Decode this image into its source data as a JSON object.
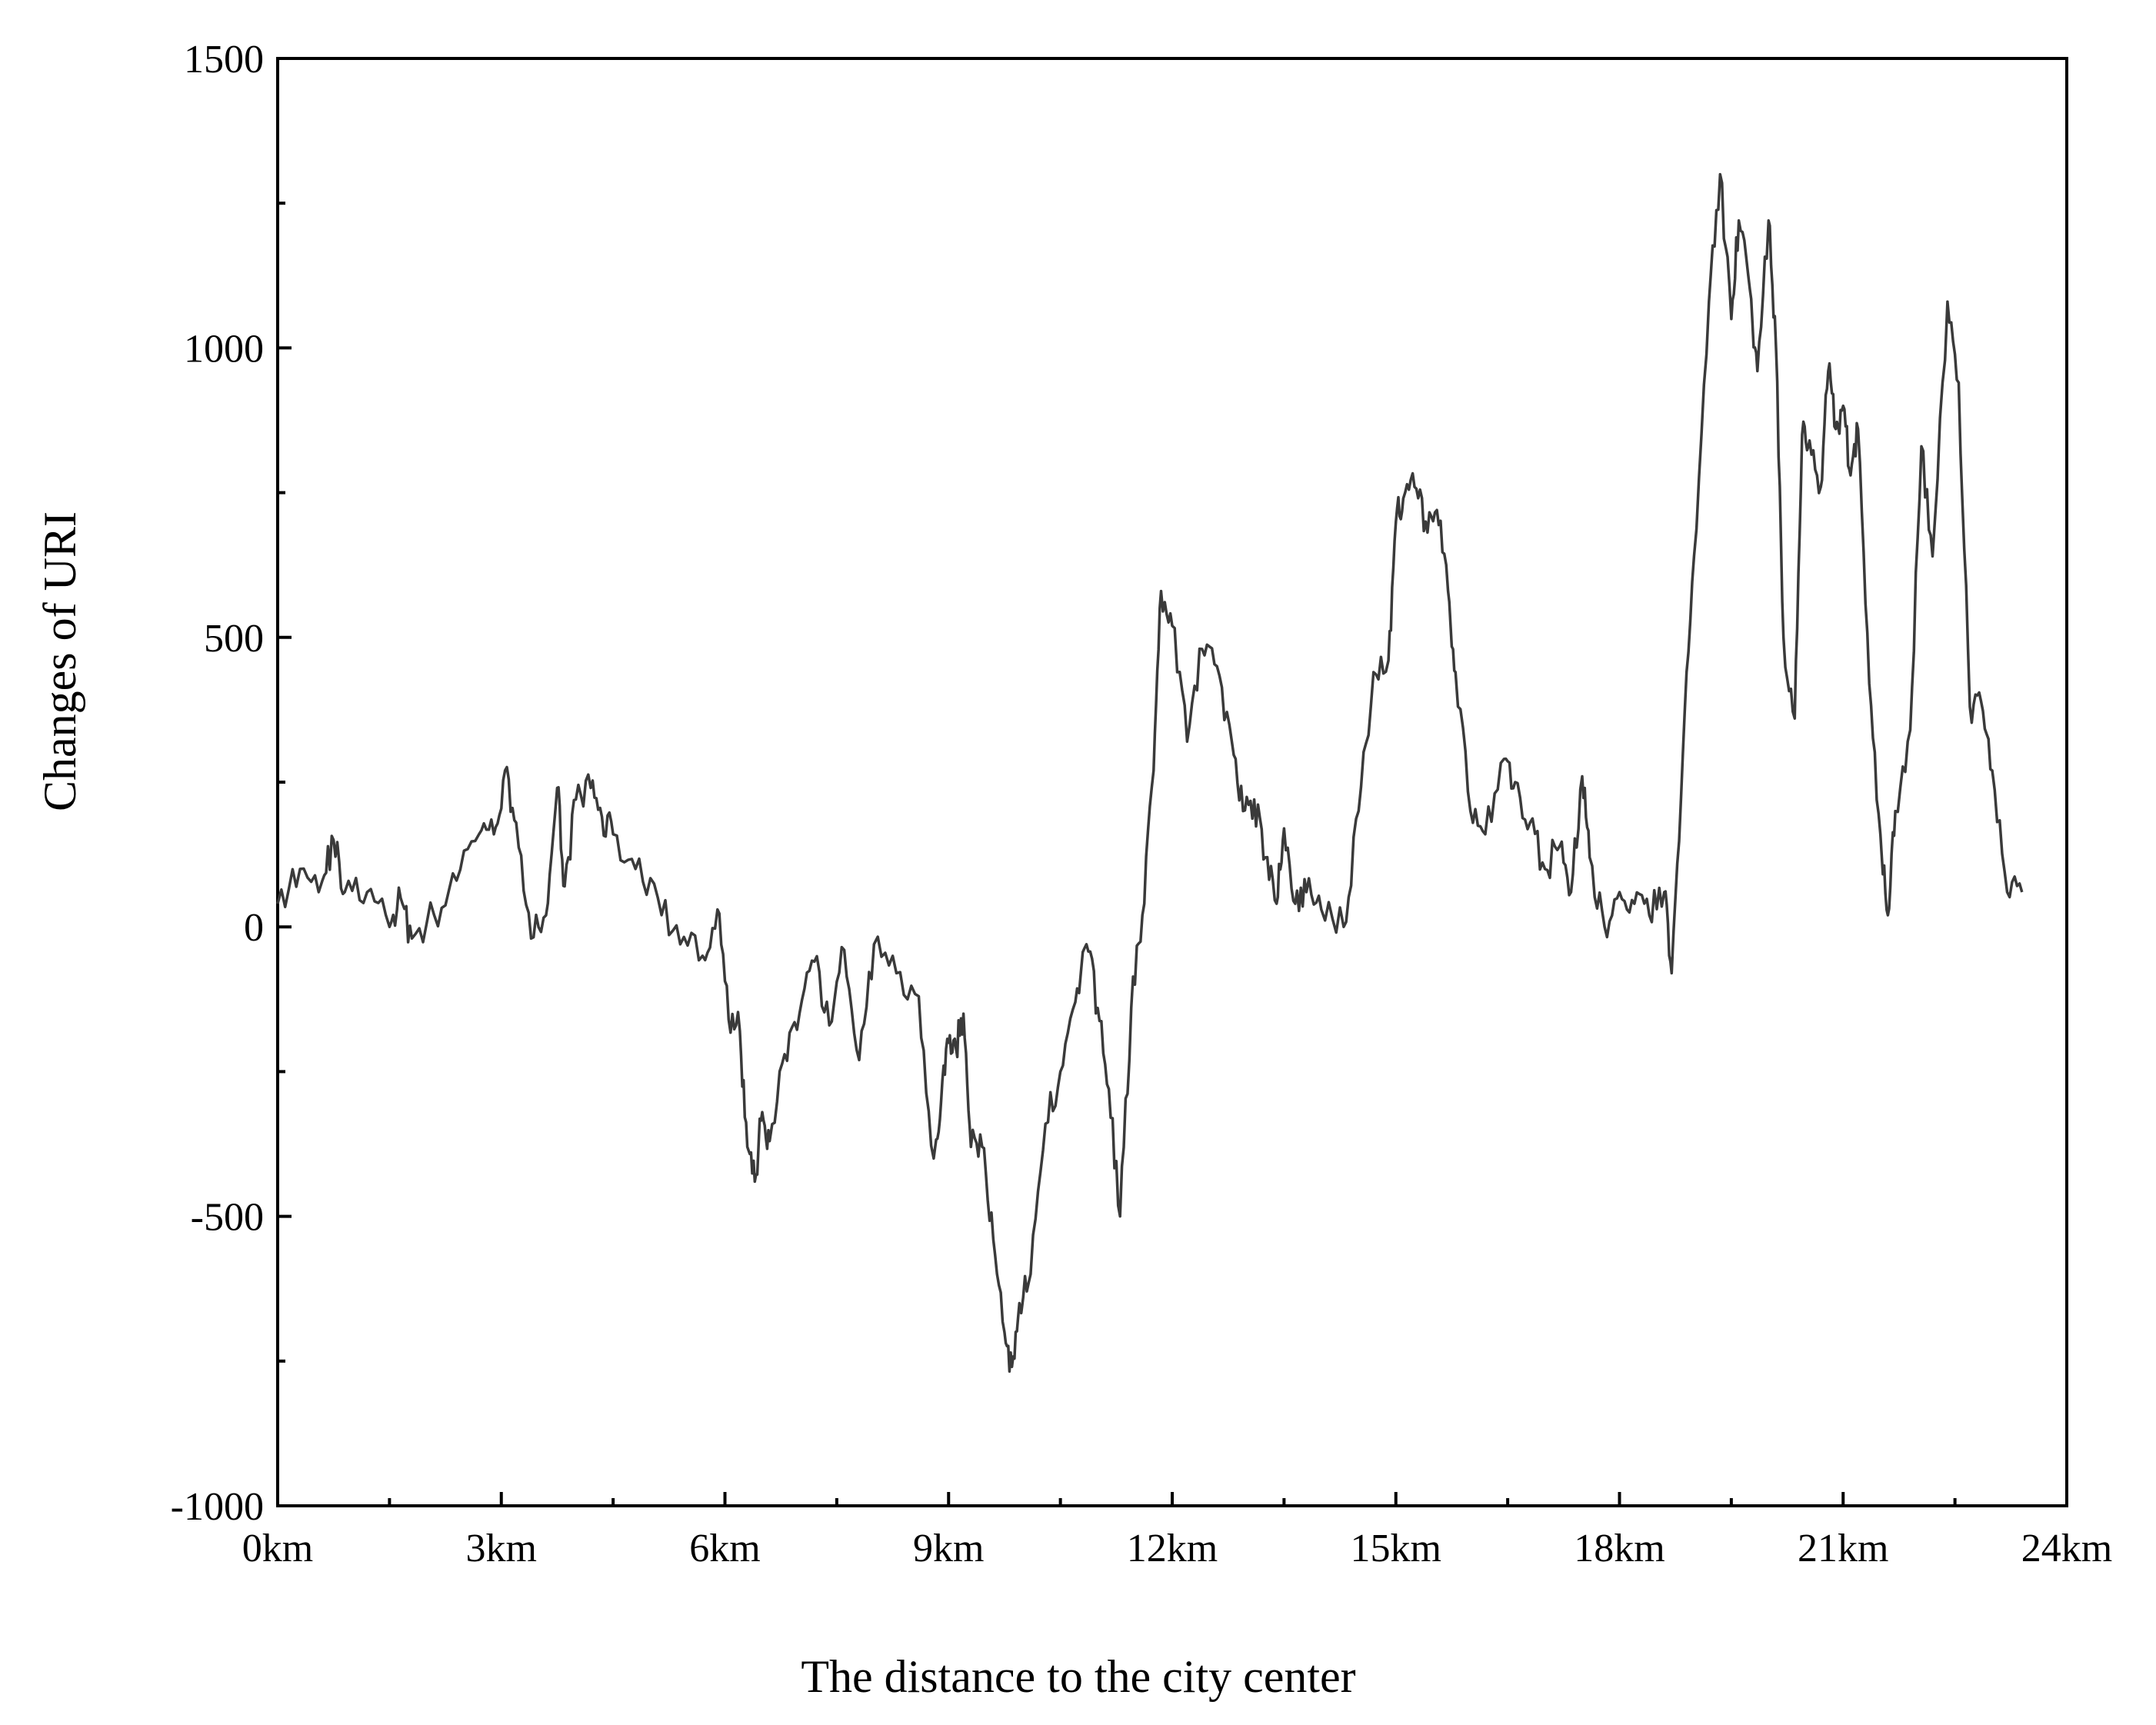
{
  "chart_data": {
    "type": "line",
    "title": "",
    "xlabel": "The distance to the city center",
    "ylabel": "Changes of  URI",
    "xlim": [
      0,
      24
    ],
    "ylim": [
      -1000,
      1500
    ],
    "grid": false,
    "legend": "none",
    "line_color": "#3a3a3a",
    "x_ticks": [
      {
        "value": 0,
        "label": "0km"
      },
      {
        "value": 3,
        "label": "3km"
      },
      {
        "value": 6,
        "label": "6km"
      },
      {
        "value": 9,
        "label": "9km"
      },
      {
        "value": 12,
        "label": "12km"
      },
      {
        "value": 15,
        "label": "15km"
      },
      {
        "value": 18,
        "label": "18km"
      },
      {
        "value": 21,
        "label": "21km"
      },
      {
        "value": 24,
        "label": "24km"
      }
    ],
    "y_ticks": [
      {
        "value": 1500,
        "label": "1500"
      },
      {
        "value": 1000,
        "label": "1000"
      },
      {
        "value": 500,
        "label": "500"
      },
      {
        "value": 0,
        "label": "0"
      },
      {
        "value": -500,
        "label": "-500"
      },
      {
        "value": -1000,
        "label": "-1000"
      }
    ],
    "series": [
      {
        "x": [
          0,
          0.3,
          0.6,
          0.75,
          0.9,
          1.2,
          1.5,
          1.65,
          1.8,
          2.1,
          2.4,
          2.7,
          2.9,
          3.05,
          3.2,
          3.4,
          3.6,
          3.75,
          3.85,
          4.0,
          4.2,
          4.35,
          4.5,
          4.8,
          5.1,
          5.4,
          5.7,
          5.9,
          6.05,
          6.2,
          6.3,
          6.4,
          6.5,
          6.6,
          6.8,
          7.0,
          7.2,
          7.4,
          7.6,
          7.8,
          8.0,
          8.3,
          8.6,
          8.8,
          8.9,
          9.0,
          9.1,
          9.2,
          9.3,
          9.45,
          9.6,
          9.75,
          9.85,
          9.95,
          10.1,
          10.3,
          10.5,
          10.7,
          10.85,
          11.0,
          11.15,
          11.3,
          11.45,
          11.6,
          11.75,
          11.85,
          12.0,
          12.2,
          12.4,
          12.6,
          12.8,
          12.95,
          13.1,
          13.25,
          13.4,
          13.5,
          13.65,
          13.8,
          14.0,
          14.3,
          14.5,
          14.7,
          14.9,
          15.0,
          15.1,
          15.25,
          15.4,
          15.55,
          15.7,
          15.8,
          16.0,
          16.2,
          16.45,
          16.6,
          16.8,
          17.0,
          17.2,
          17.35,
          17.5,
          17.6,
          17.8,
          18.0,
          18.2,
          18.4,
          18.6,
          18.7,
          18.85,
          19.0,
          19.2,
          19.35,
          19.5,
          19.6,
          19.75,
          19.85,
          20.0,
          20.1,
          20.2,
          20.35,
          20.45,
          20.55,
          20.7,
          20.8,
          20.9,
          21.0,
          21.1,
          21.2,
          21.35,
          21.5,
          21.6,
          21.7,
          21.9,
          22.05,
          22.2,
          22.4,
          22.55,
          22.7,
          22.85,
          23.0,
          23.2,
          23.4
        ],
        "values": [
          40,
          100,
          80,
          150,
          60,
          60,
          0,
          50,
          -20,
          20,
          80,
          160,
          160,
          270,
          180,
          -20,
          20,
          240,
          70,
          220,
          240,
          190,
          160,
          100,
          50,
          -30,
          -50,
          30,
          -160,
          -180,
          -380,
          -440,
          -320,
          -370,
          -220,
          -150,
          -60,
          -170,
          -40,
          -230,
          -30,
          -80,
          -120,
          -400,
          -300,
          -200,
          -210,
          -150,
          -380,
          -380,
          -540,
          -700,
          -760,
          -650,
          -600,
          -340,
          -250,
          -130,
          -30,
          -140,
          -280,
          -500,
          -140,
          20,
          270,
          580,
          520,
          320,
          480,
          450,
          320,
          200,
          220,
          120,
          40,
          170,
          40,
          60,
          30,
          0,
          200,
          440,
          460,
          700,
          740,
          760,
          700,
          720,
          580,
          440,
          200,
          160,
          290,
          250,
          180,
          100,
          140,
          60,
          260,
          120,
          0,
          60,
          40,
          20,
          60,
          -80,
          300,
          640,
          1080,
          1300,
          1050,
          1220,
          1100,
          960,
          1220,
          1000,
          500,
          360,
          850,
          840,
          760,
          960,
          860,
          900,
          780,
          860,
          420,
          160,
          20,
          200,
          340,
          830,
          640,
          1080,
          940,
          380,
          390,
          270,
          60,
          60
        ]
      }
    ]
  }
}
